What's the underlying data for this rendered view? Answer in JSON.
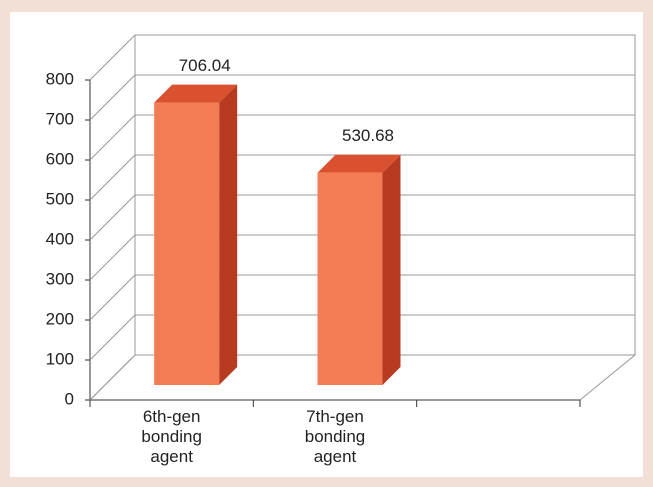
{
  "chart_data": {
    "type": "bar3d",
    "categories": [
      "6th-gen bonding agent",
      "7th-gen bonding agent",
      null
    ],
    "values": [
      706.04,
      530.68,
      null
    ],
    "colors": {
      "front": "#f47c54",
      "side": "#b83a20",
      "top": "#d9512e"
    },
    "ylim": [
      0,
      800
    ],
    "yticks": [
      0,
      100,
      200,
      300,
      400,
      500,
      600,
      700,
      800
    ],
    "grid": true
  }
}
